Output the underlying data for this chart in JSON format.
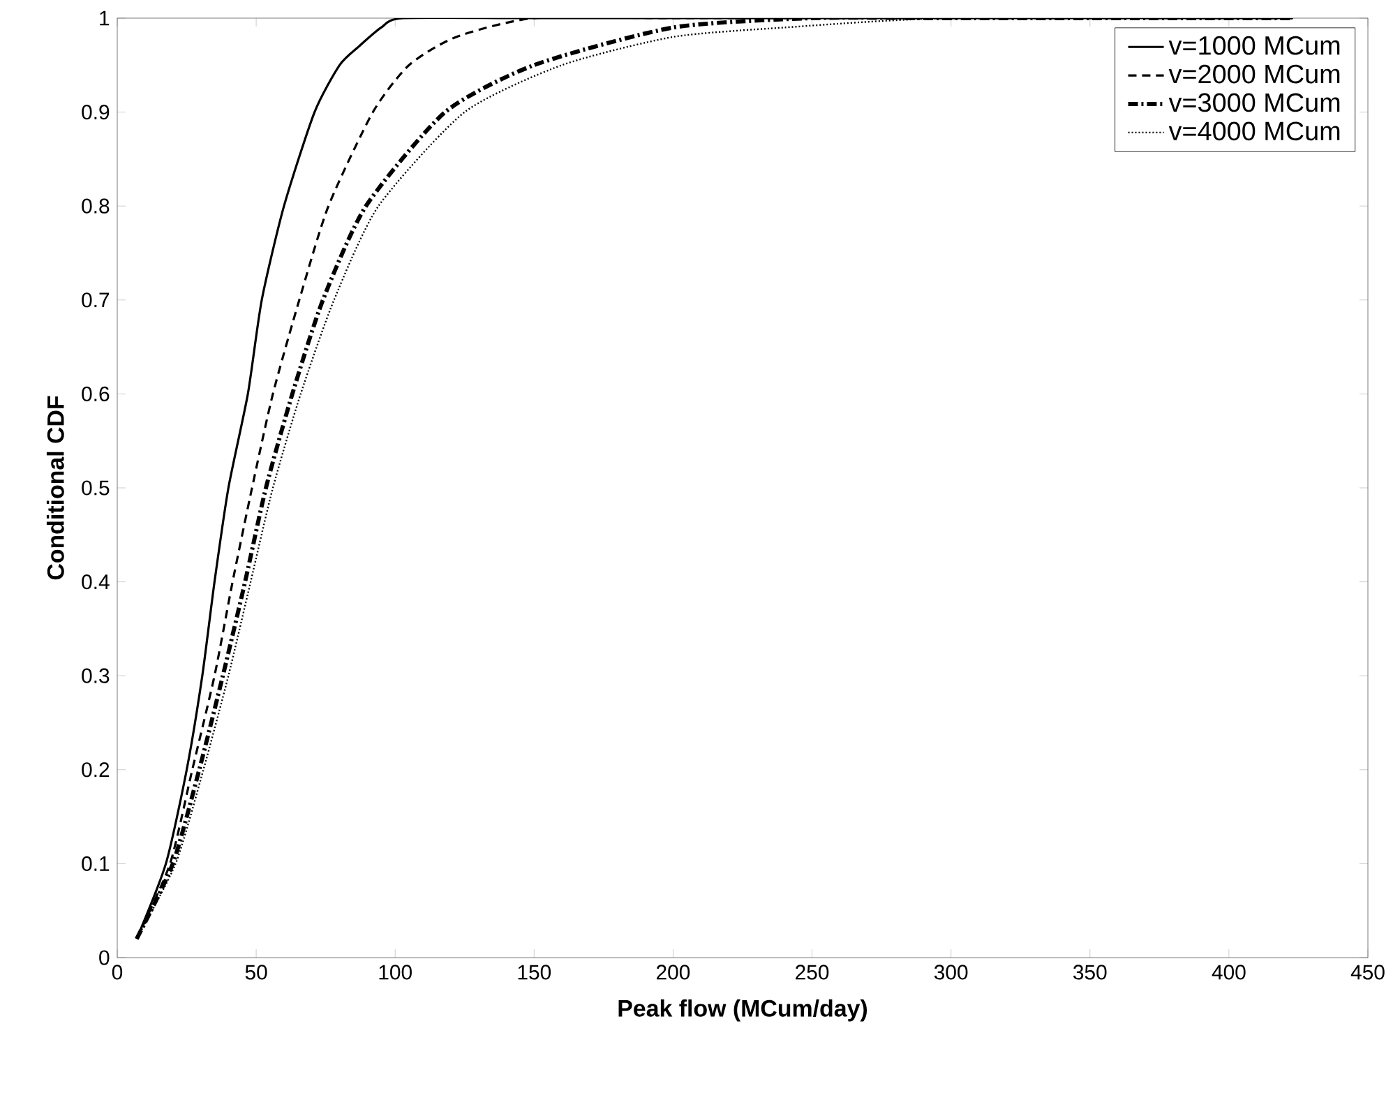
{
  "chart_data": {
    "type": "line",
    "xlabel": "Peak flow (MCum/day)",
    "ylabel": "Conditional CDF",
    "xlim": [
      0,
      450
    ],
    "ylim": [
      0,
      1
    ],
    "xticks": [
      0,
      50,
      100,
      150,
      200,
      250,
      300,
      350,
      400,
      450
    ],
    "yticks": [
      0,
      0.1,
      0.2,
      0.3,
      0.4,
      0.5,
      0.6,
      0.7,
      0.8,
      0.9,
      1
    ],
    "grid": false,
    "legend": "top right",
    "marker": "none",
    "series": [
      {
        "name": "v=1000 MCum",
        "color": "#000000",
        "line_style": "solid",
        "x": [
          7,
          17.5,
          25,
          30.6,
          35,
          40,
          47,
          52,
          60,
          71,
          80,
          87,
          95,
          103,
          150,
          250,
          350,
          423
        ],
        "values": [
          0.02,
          0.1,
          0.2,
          0.3,
          0.4,
          0.5,
          0.6,
          0.7,
          0.8,
          0.9,
          0.95,
          0.97,
          0.99,
          1,
          1,
          1,
          1,
          1
        ]
      },
      {
        "name": "v=2000 MCum",
        "color": "#000000",
        "line_style": "dashed",
        "x": [
          7,
          19,
          27,
          35,
          41.5,
          48.5,
          56,
          65.5,
          76,
          92,
          105,
          122,
          150,
          200,
          300,
          423
        ],
        "values": [
          0.02,
          0.1,
          0.2,
          0.3,
          0.4,
          0.5,
          0.6,
          0.7,
          0.8,
          0.9,
          0.95,
          0.98,
          1,
          1,
          1,
          1
        ]
      },
      {
        "name": "v=3000 MCum",
        "color": "#000000",
        "line_style": "dashdot",
        "x": [
          7,
          20,
          29.5,
          38,
          46,
          53.5,
          63,
          74,
          89.5,
          118,
          150,
          200,
          250,
          300,
          423
        ],
        "values": [
          0.02,
          0.1,
          0.2,
          0.3,
          0.4,
          0.5,
          0.6,
          0.7,
          0.8,
          0.9,
          0.95,
          0.99,
          1,
          1,
          1
        ]
      },
      {
        "name": "v=4000 MCum",
        "color": "#000000",
        "line_style": "dotted",
        "x": [
          7,
          21,
          31,
          40,
          48,
          56,
          66,
          78,
          94,
          125,
          160,
          200,
          240,
          300,
          423
        ],
        "values": [
          0.02,
          0.1,
          0.2,
          0.3,
          0.4,
          0.5,
          0.6,
          0.7,
          0.8,
          0.9,
          0.95,
          0.98,
          0.99,
          1,
          1
        ]
      }
    ]
  }
}
